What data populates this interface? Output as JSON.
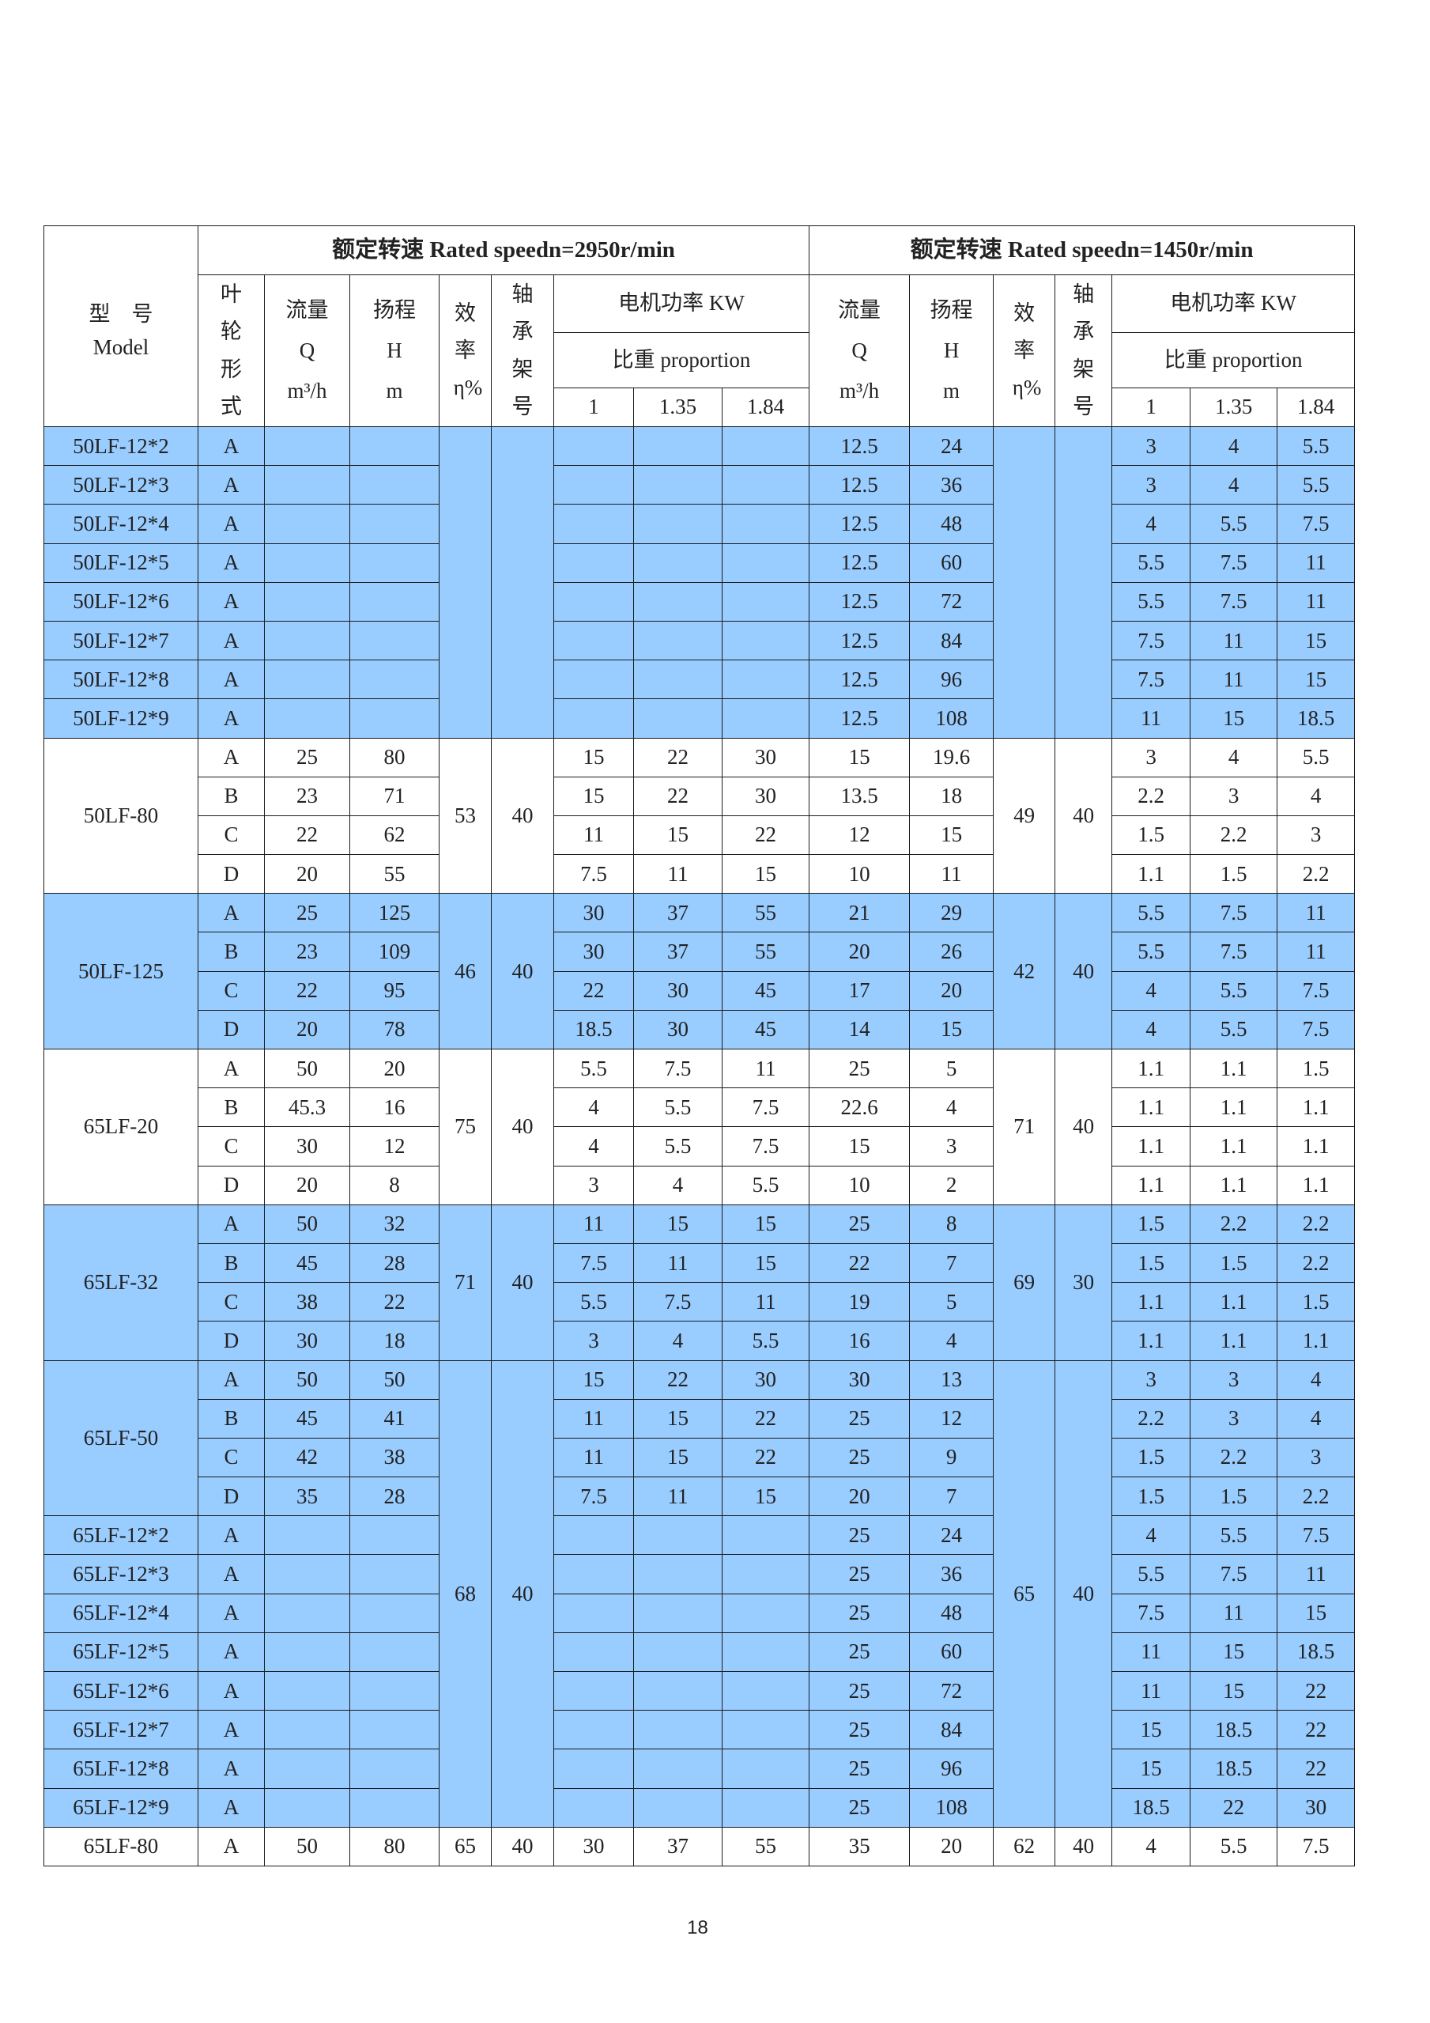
{
  "header": {
    "model_cn": "型　号",
    "model_en": "Model",
    "speed_2950": "额定转速 Rated speedn=2950r/min",
    "speed_1450": "额定转速 Rated speedn=1450r/min",
    "impeller_type": "叶轮形式",
    "flow": "流量",
    "flow_symbol": "Q",
    "flow_unit": "m³/h",
    "head": "扬程",
    "head_symbol": "H",
    "head_unit": "m",
    "efficiency": "效率η%",
    "bearing": "轴承架号",
    "motor_power": "电机功率 KW",
    "proportion": "比重 proportion",
    "proportions": [
      "1",
      "1.35",
      "1.84"
    ]
  },
  "colors": {
    "highlight": "#99ccff",
    "plain": "#ffffff"
  },
  "blocks": [
    {
      "bg": "blue",
      "eff_2950": "",
      "bearing_2950": "",
      "eff_1450": "",
      "bearing_1450": "",
      "models": [
        {
          "model": "50LF-12*2",
          "rows": [
            [
              "A",
              "",
              "",
              "",
              "",
              "",
              "12.5",
              "24",
              "3",
              "4",
              "5.5"
            ]
          ]
        },
        {
          "model": "50LF-12*3",
          "rows": [
            [
              "A",
              "",
              "",
              "",
              "",
              "",
              "12.5",
              "36",
              "3",
              "4",
              "5.5"
            ]
          ]
        },
        {
          "model": "50LF-12*4",
          "rows": [
            [
              "A",
              "",
              "",
              "",
              "",
              "",
              "12.5",
              "48",
              "4",
              "5.5",
              "7.5"
            ]
          ]
        },
        {
          "model": "50LF-12*5",
          "rows": [
            [
              "A",
              "",
              "",
              "",
              "",
              "",
              "12.5",
              "60",
              "5.5",
              "7.5",
              "11"
            ]
          ]
        },
        {
          "model": "50LF-12*6",
          "rows": [
            [
              "A",
              "",
              "",
              "",
              "",
              "",
              "12.5",
              "72",
              "5.5",
              "7.5",
              "11"
            ]
          ]
        },
        {
          "model": "50LF-12*7",
          "rows": [
            [
              "A",
              "",
              "",
              "",
              "",
              "",
              "12.5",
              "84",
              "7.5",
              "11",
              "15"
            ]
          ]
        },
        {
          "model": "50LF-12*8",
          "rows": [
            [
              "A",
              "",
              "",
              "",
              "",
              "",
              "12.5",
              "96",
              "7.5",
              "11",
              "15"
            ]
          ]
        },
        {
          "model": "50LF-12*9",
          "rows": [
            [
              "A",
              "",
              "",
              "",
              "",
              "",
              "12.5",
              "108",
              "11",
              "15",
              "18.5"
            ]
          ]
        }
      ]
    },
    {
      "bg": "white",
      "eff_2950": "53",
      "bearing_2950": "40",
      "eff_1450": "49",
      "bearing_1450": "40",
      "models": [
        {
          "model": "50LF-80",
          "rows": [
            [
              "A",
              "25",
              "80",
              "15",
              "22",
              "30",
              "15",
              "19.6",
              "3",
              "4",
              "5.5"
            ],
            [
              "B",
              "23",
              "71",
              "15",
              "22",
              "30",
              "13.5",
              "18",
              "2.2",
              "3",
              "4"
            ],
            [
              "C",
              "22",
              "62",
              "11",
              "15",
              "22",
              "12",
              "15",
              "1.5",
              "2.2",
              "3"
            ],
            [
              "D",
              "20",
              "55",
              "7.5",
              "11",
              "15",
              "10",
              "11",
              "1.1",
              "1.5",
              "2.2"
            ]
          ]
        }
      ]
    },
    {
      "bg": "blue",
      "eff_2950": "46",
      "bearing_2950": "40",
      "eff_1450": "42",
      "bearing_1450": "40",
      "models": [
        {
          "model": "50LF-125",
          "rows": [
            [
              "A",
              "25",
              "125",
              "30",
              "37",
              "55",
              "21",
              "29",
              "5.5",
              "7.5",
              "11"
            ],
            [
              "B",
              "23",
              "109",
              "30",
              "37",
              "55",
              "20",
              "26",
              "5.5",
              "7.5",
              "11"
            ],
            [
              "C",
              "22",
              "95",
              "22",
              "30",
              "45",
              "17",
              "20",
              "4",
              "5.5",
              "7.5"
            ],
            [
              "D",
              "20",
              "78",
              "18.5",
              "30",
              "45",
              "14",
              "15",
              "4",
              "5.5",
              "7.5"
            ]
          ]
        }
      ]
    },
    {
      "bg": "white",
      "eff_2950": "75",
      "bearing_2950": "40",
      "eff_1450": "71",
      "bearing_1450": "40",
      "models": [
        {
          "model": "65LF-20",
          "rows": [
            [
              "A",
              "50",
              "20",
              "5.5",
              "7.5",
              "11",
              "25",
              "5",
              "1.1",
              "1.1",
              "1.5"
            ],
            [
              "B",
              "45.3",
              "16",
              "4",
              "5.5",
              "7.5",
              "22.6",
              "4",
              "1.1",
              "1.1",
              "1.1"
            ],
            [
              "C",
              "30",
              "12",
              "4",
              "5.5",
              "7.5",
              "15",
              "3",
              "1.1",
              "1.1",
              "1.1"
            ],
            [
              "D",
              "20",
              "8",
              "3",
              "4",
              "5.5",
              "10",
              "2",
              "1.1",
              "1.1",
              "1.1"
            ]
          ]
        }
      ]
    },
    {
      "bg": "blue",
      "eff_2950": "71",
      "bearing_2950": "40",
      "eff_1450": "69",
      "bearing_1450": "30",
      "models": [
        {
          "model": "65LF-32",
          "rows": [
            [
              "A",
              "50",
              "32",
              "11",
              "15",
              "15",
              "25",
              "8",
              "1.5",
              "2.2",
              "2.2"
            ],
            [
              "B",
              "45",
              "28",
              "7.5",
              "11",
              "15",
              "22",
              "7",
              "1.5",
              "1.5",
              "2.2"
            ],
            [
              "C",
              "38",
              "22",
              "5.5",
              "7.5",
              "11",
              "19",
              "5",
              "1.1",
              "1.1",
              "1.5"
            ],
            [
              "D",
              "30",
              "18",
              "3",
              "4",
              "5.5",
              "16",
              "4",
              "1.1",
              "1.1",
              "1.1"
            ]
          ]
        }
      ]
    },
    {
      "bg": "blue",
      "eff_2950": "68",
      "bearing_2950": "40",
      "eff_1450": "65",
      "bearing_1450": "40",
      "models": [
        {
          "model": "65LF-50",
          "rows": [
            [
              "A",
              "50",
              "50",
              "15",
              "22",
              "30",
              "30",
              "13",
              "3",
              "3",
              "4"
            ],
            [
              "B",
              "45",
              "41",
              "11",
              "15",
              "22",
              "25",
              "12",
              "2.2",
              "3",
              "4"
            ],
            [
              "C",
              "42",
              "38",
              "11",
              "15",
              "22",
              "25",
              "9",
              "1.5",
              "2.2",
              "3"
            ],
            [
              "D",
              "35",
              "28",
              "7.5",
              "11",
              "15",
              "20",
              "7",
              "1.5",
              "1.5",
              "2.2"
            ]
          ]
        },
        {
          "model": "65LF-12*2",
          "rows": [
            [
              "A",
              "",
              "",
              "",
              "",
              "",
              "25",
              "24",
              "4",
              "5.5",
              "7.5"
            ]
          ]
        },
        {
          "model": "65LF-12*3",
          "rows": [
            [
              "A",
              "",
              "",
              "",
              "",
              "",
              "25",
              "36",
              "5.5",
              "7.5",
              "11"
            ]
          ]
        },
        {
          "model": "65LF-12*4",
          "rows": [
            [
              "A",
              "",
              "",
              "",
              "",
              "",
              "25",
              "48",
              "7.5",
              "11",
              "15"
            ]
          ]
        },
        {
          "model": "65LF-12*5",
          "rows": [
            [
              "A",
              "",
              "",
              "",
              "",
              "",
              "25",
              "60",
              "11",
              "15",
              "18.5"
            ]
          ]
        },
        {
          "model": "65LF-12*6",
          "rows": [
            [
              "A",
              "",
              "",
              "",
              "",
              "",
              "25",
              "72",
              "11",
              "15",
              "22"
            ]
          ]
        },
        {
          "model": "65LF-12*7",
          "rows": [
            [
              "A",
              "",
              "",
              "",
              "",
              "",
              "25",
              "84",
              "15",
              "18.5",
              "22"
            ]
          ]
        },
        {
          "model": "65LF-12*8",
          "rows": [
            [
              "A",
              "",
              "",
              "",
              "",
              "",
              "25",
              "96",
              "15",
              "18.5",
              "22"
            ]
          ]
        },
        {
          "model": "65LF-12*9",
          "rows": [
            [
              "A",
              "",
              "",
              "",
              "",
              "",
              "25",
              "108",
              "18.5",
              "22",
              "30"
            ]
          ]
        }
      ]
    },
    {
      "bg": "white",
      "eff_2950": "65",
      "bearing_2950": "40",
      "eff_1450": "62",
      "bearing_1450": "40",
      "models": [
        {
          "model": "65LF-80",
          "rows": [
            [
              "A",
              "50",
              "80",
              "30",
              "37",
              "55",
              "35",
              "20",
              "4",
              "5.5",
              "7.5"
            ]
          ]
        }
      ]
    }
  ],
  "page_number": "18"
}
